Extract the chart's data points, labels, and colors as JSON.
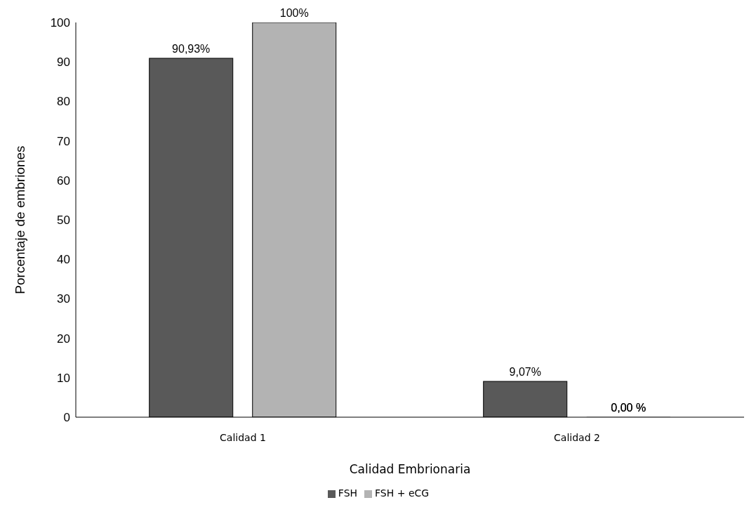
{
  "chart_data": {
    "type": "bar",
    "xlabel": "Calidad Embrionaria",
    "ylabel": "Porcentaje de embriones",
    "categories": [
      "Calidad 1",
      "Calidad 2"
    ],
    "series": [
      {
        "name": "FSH",
        "color": "#595959",
        "values": [
          90.93,
          9.07
        ],
        "value_labels": [
          "90,93%",
          "9,07%"
        ]
      },
      {
        "name": "FSH + eCG",
        "color": "#b3b3b3",
        "values": [
          100,
          0
        ],
        "value_labels": [
          "100%",
          "0,00 %"
        ]
      }
    ],
    "ylim": [
      0,
      100
    ],
    "yticks": [
      0,
      10,
      20,
      30,
      40,
      50,
      60,
      70,
      80,
      90,
      100
    ],
    "grid": false,
    "legend": "bottom"
  }
}
